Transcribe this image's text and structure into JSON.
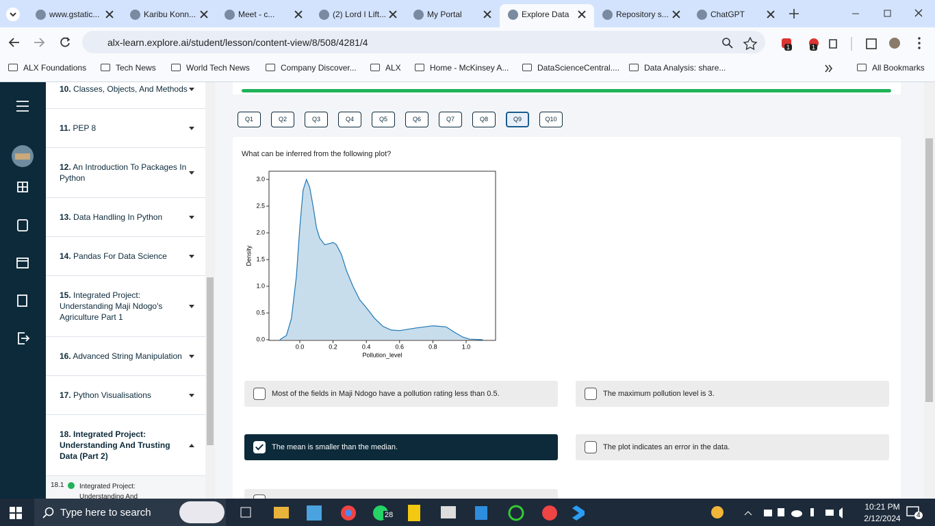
{
  "browser": {
    "tabs": [
      "www.gstatic...",
      "Karibu Konn...",
      "Meet - c...",
      "(2) Lord I Lift...",
      "My Portal",
      "Explore Data",
      "Repository s...",
      "ChatGPT"
    ],
    "active_tab": 5,
    "url": "alx-learn.explore.ai/student/lesson/content-view/8/508/4281/4",
    "bookmarks": [
      "ALX Foundations",
      "Tech News",
      "World Tech News",
      "Company Discover...",
      "ALX",
      "Home - McKinsey A...",
      "DataScienceCentral....",
      "Data Analysis: share..."
    ],
    "all_bookmarks": "All Bookmarks",
    "ext_badges": [
      "1",
      "1"
    ]
  },
  "lessons": [
    {
      "number": "10.",
      "title": "Classes, Objects, And Methods",
      "expanded": false
    },
    {
      "number": "11.",
      "title": "PEP 8",
      "expanded": false
    },
    {
      "number": "12.",
      "title": "An Introduction To Packages In Python",
      "expanded": false
    },
    {
      "number": "13.",
      "title": "Data Handling In Python",
      "expanded": false
    },
    {
      "number": "14.",
      "title": "Pandas For Data Science",
      "expanded": false
    },
    {
      "number": "15.",
      "title": "Integrated Project: Understanding Maji Ndogo's Agriculture Part 1",
      "expanded": false
    },
    {
      "number": "16.",
      "title": "Advanced String Manipulation",
      "expanded": false
    },
    {
      "number": "17.",
      "title": "Python Visualisations",
      "expanded": false
    },
    {
      "number": "18.",
      "title": "Integrated Project: Understanding And Trusting Data (Part 2)",
      "expanded": true
    }
  ],
  "sub_lesson": {
    "number": "18.1",
    "title": "Integrated Project: Understanding And Trusting"
  },
  "quiz": {
    "questions": [
      "Q1",
      "Q2",
      "Q3",
      "Q4",
      "Q5",
      "Q6",
      "Q7",
      "Q8",
      "Q9",
      "Q10"
    ],
    "current_question": 8,
    "prompt": "What can be inferred from the following plot?",
    "options": [
      {
        "text": "Most of the fields in Maji Ndogo have a pollution rating less than 0.5.",
        "checked": false
      },
      {
        "text": "The maximum pollution level is 3.",
        "checked": false
      },
      {
        "text": "The mean is smaller than the median.",
        "checked": true
      },
      {
        "text": "The plot indicates an error in the data.",
        "checked": false
      }
    ]
  },
  "chart_data": {
    "type": "area",
    "xlabel": "Pollution_level",
    "ylabel": "Density",
    "color": "#1f77b4",
    "x": [
      -0.12,
      -0.08,
      -0.05,
      -0.02,
      0,
      0.02,
      0.04,
      0.06,
      0.08,
      0.1,
      0.12,
      0.15,
      0.18,
      0.2,
      0.22,
      0.25,
      0.28,
      0.32,
      0.36,
      0.4,
      0.45,
      0.5,
      0.55,
      0.6,
      0.7,
      0.8,
      0.88,
      0.93,
      0.98,
      1.02,
      1.1
    ],
    "values": [
      0,
      0.08,
      0.4,
      1.2,
      2.1,
      2.8,
      3.0,
      2.85,
      2.5,
      2.1,
      1.9,
      1.78,
      1.8,
      1.82,
      1.78,
      1.6,
      1.3,
      1.0,
      0.75,
      0.6,
      0.4,
      0.25,
      0.18,
      0.17,
      0.22,
      0.26,
      0.24,
      0.14,
      0.05,
      0.01,
      0
    ],
    "xlim": [
      -0.185,
      1.177
    ],
    "ylim": [
      -0.013,
      3.154
    ],
    "xticks": [
      {
        "value": 0,
        "label": "0.0"
      },
      0.2,
      0.4,
      0.6,
      0.8,
      {
        "value": 1,
        "label": "1.0"
      }
    ],
    "yticks": [
      {
        "value": 0,
        "label": "0.0"
      },
      0.5,
      {
        "value": 1,
        "label": "1.0"
      },
      1.5,
      {
        "value": 2,
        "label": "2.0"
      },
      2.5,
      {
        "value": 3,
        "label": "3.0"
      }
    ]
  },
  "taskbar": {
    "search": "Type here to search",
    "whatsapp_badge": "28",
    "time": "10:21 PM",
    "date": "2/12/2024",
    "notifications": "4"
  }
}
